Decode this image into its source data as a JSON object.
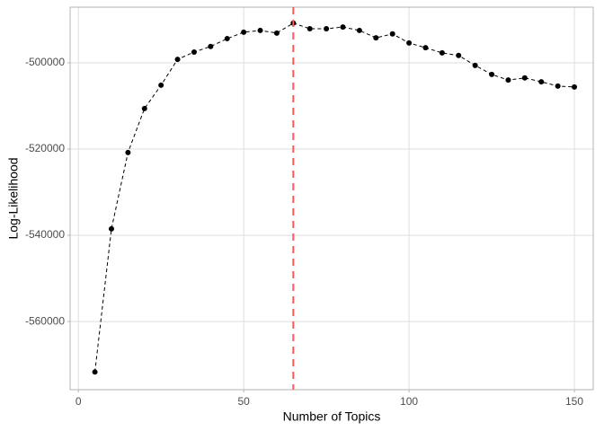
{
  "chart_data": {
    "type": "line",
    "x_label": "Number of Topics",
    "y_label": "Log-Likelihood",
    "x": [
      5,
      10,
      15,
      20,
      25,
      30,
      35,
      40,
      45,
      50,
      55,
      60,
      65,
      70,
      75,
      80,
      85,
      90,
      95,
      100,
      105,
      110,
      115,
      120,
      125,
      130,
      135,
      140,
      145,
      150
    ],
    "series": [
      {
        "color": "#000000",
        "values": [
          -571700,
          -538500,
          -520800,
          -510600,
          -505200,
          -499200,
          -497500,
          -496200,
          -494400,
          -492900,
          -492500,
          -493100,
          -490800,
          -492100,
          -492100,
          -491700,
          -492500,
          -494200,
          -493300,
          -495400,
          -496500,
          -497700,
          -498300,
          -500600,
          -502700,
          -504000,
          -503500,
          -504400,
          -505400,
          -505600
        ]
      }
    ],
    "vline": 65,
    "vline_color": "#ff5a5a",
    "xlim": [
      -2.5,
      155.7
    ],
    "ylim": [
      -575800,
      -487100
    ],
    "xticks": [
      0,
      50,
      100,
      150
    ],
    "yticks": [
      -560000,
      -540000,
      -520000,
      -500000
    ],
    "grid": true
  }
}
